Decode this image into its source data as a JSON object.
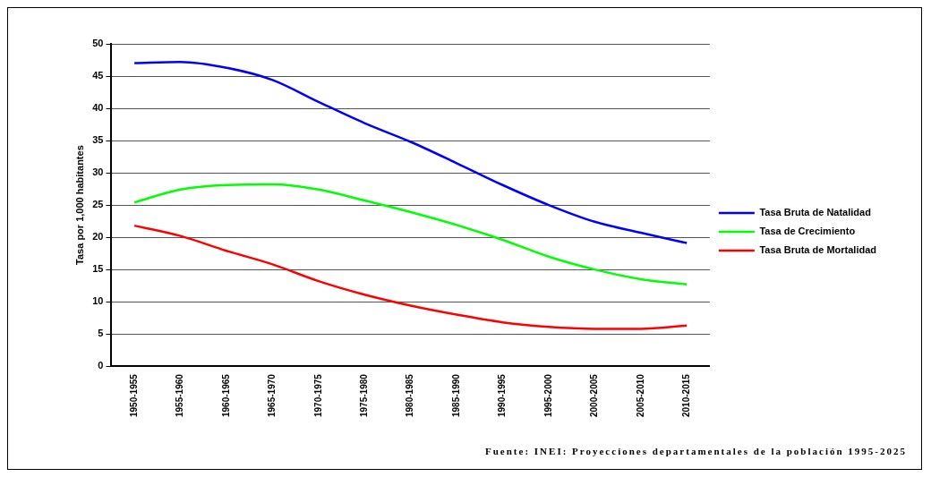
{
  "chart_data": {
    "type": "line",
    "ylabel": "Tasa por 1,000 habitantes",
    "categories": [
      "1950-1955",
      "1955-1960",
      "1960-1965",
      "1965-1970",
      "1970-1975",
      "1975-1980",
      "1980-1985",
      "1985-1990",
      "1990-1995",
      "1995-2000",
      "2000-2005",
      "2005-2010",
      "2010-2015"
    ],
    "series": [
      {
        "name": "Tasa Bruta de Natalidad",
        "color": "#0000ff",
        "values": [
          47.0,
          47.2,
          46.3,
          44.4,
          41.0,
          37.7,
          34.8,
          31.5,
          28.1,
          25.0,
          22.4,
          20.7,
          19.1
        ]
      },
      {
        "name": "Tasa de Crecimiento",
        "color": "#00ff00",
        "values": [
          25.4,
          27.4,
          28.1,
          28.2,
          27.4,
          25.7,
          23.9,
          21.9,
          19.6,
          17.0,
          15.0,
          13.5,
          12.7
        ]
      },
      {
        "name": "Tasa Bruta de Mortalidad",
        "color": "#ff0000",
        "values": [
          21.8,
          20.2,
          17.9,
          15.8,
          13.2,
          11.1,
          9.4,
          8.0,
          6.8,
          6.1,
          5.8,
          5.8,
          6.3
        ]
      }
    ],
    "ylim": [
      0,
      50
    ],
    "yticks": [
      0,
      5,
      10,
      15,
      20,
      25,
      30,
      35,
      40,
      45,
      50
    ],
    "grid": "y",
    "legend": "right",
    "marker": "none",
    "line_style": "solid",
    "annotations": [
      "Fuente: INEI: Proyecciones departamentales de la población 1995-2025"
    ]
  }
}
